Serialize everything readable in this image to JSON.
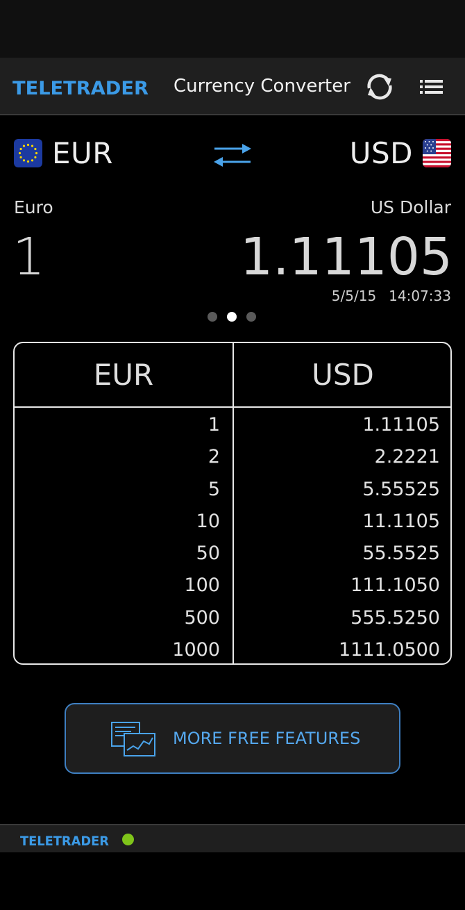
{
  "header": {
    "logo_text": "TELETRADER",
    "title": "Currency Converter",
    "refresh_icon": "refresh-icon",
    "menu_icon": "list-menu-icon"
  },
  "converter": {
    "from": {
      "code": "EUR",
      "name": "Euro",
      "amount": "1",
      "flag_icon": "eu-flag-icon"
    },
    "to": {
      "code": "USD",
      "name": "US Dollar",
      "amount": "1.11105",
      "flag_icon": "us-flag-icon"
    },
    "swap_icon": "swap-arrows-icon",
    "date": "5/5/15",
    "time": "14:07:33",
    "page_indicator": {
      "count": 3,
      "active": 2
    }
  },
  "table": {
    "headers": [
      "EUR",
      "USD"
    ],
    "rows": [
      [
        "1",
        "1.11105"
      ],
      [
        "2",
        "2.2221"
      ],
      [
        "5",
        "5.55525"
      ],
      [
        "10",
        "11.1105"
      ],
      [
        "50",
        "55.5525"
      ],
      [
        "100",
        "111.1050"
      ],
      [
        "500",
        "555.5250"
      ],
      [
        "1000",
        "1111.0500"
      ]
    ]
  },
  "features_button": {
    "label": "MORE FREE FEATURES",
    "icon": "chart-document-icon"
  },
  "footer": {
    "logo_text": "TELETRADER",
    "status": "online-status-light"
  },
  "colors": {
    "accent": "#55a8ee",
    "border": "#3e7fc1",
    "status_green": "#7fc41a",
    "background": "#000000"
  }
}
